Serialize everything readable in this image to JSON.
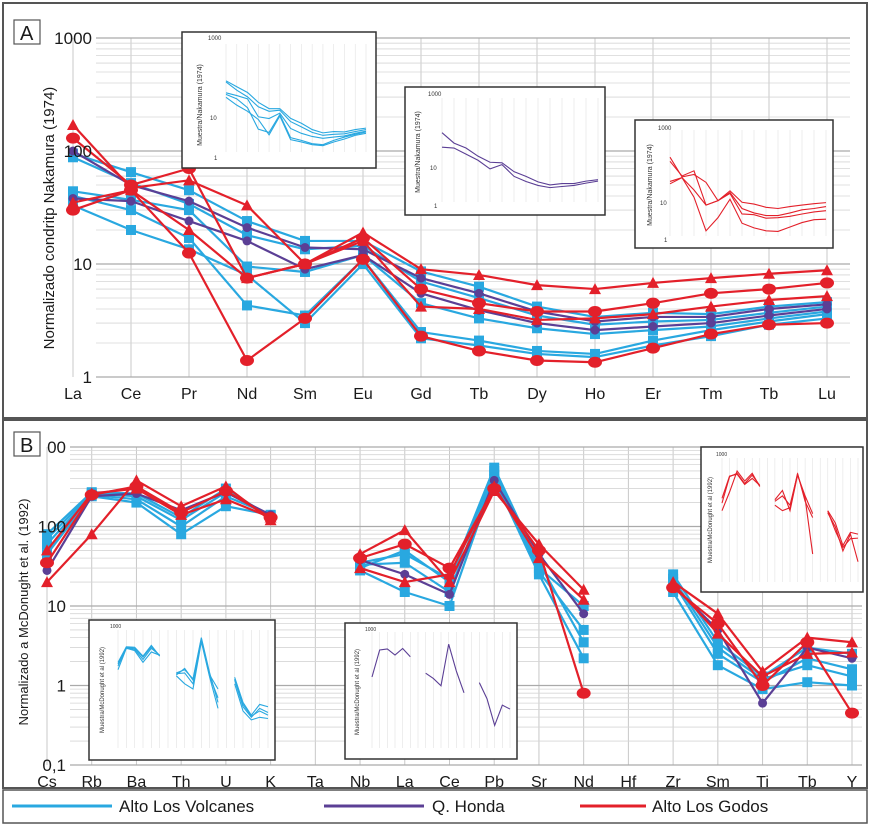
{
  "colors": {
    "alto_los_volcanes": "#29a8e0",
    "q_honda": "#5b3f95",
    "alto_los_godos": "#e3202a",
    "grid": "#c8c8c8",
    "frame": "#555555"
  },
  "legend": [
    {
      "key": "alto_los_volcanes",
      "label": "Alto Los Volcanes"
    },
    {
      "key": "q_honda",
      "label": "Q. Honda"
    },
    {
      "key": "alto_los_godos",
      "label": "Alto Los Godos"
    }
  ],
  "panel_a": {
    "letter": "A",
    "ylabel": "Normalizado condritp Nakamura (1974)",
    "yticks": [
      "1",
      "10",
      "100",
      "1000"
    ]
  },
  "panel_b": {
    "letter": "B",
    "ylabel": "Normalizado a McDonught et al. (1992)",
    "yticks": [
      "0,1",
      "1",
      "10",
      "100",
      "00"
    ]
  },
  "inset_a1": {
    "ylabel": "Muestra/Nakamura (1974)",
    "ytick_top": "1000",
    "ytick_low": "10",
    "ytick_bottom": "1"
  },
  "inset_a2": {
    "ylabel": "Muestra/Nakamura (1974)",
    "ytick_top": "1000",
    "ytick_low": "10",
    "ytick_bottom": "1"
  },
  "inset_a3": {
    "ylabel": "Muestra/Nakamura (1974)",
    "ytick_top": "1000",
    "ytick_low": "10",
    "ytick_bottom": "1"
  },
  "inset_b1": {
    "ylabel": "Muestra/McDonught et al (1992)",
    "ytick_top": "1000"
  },
  "inset_b2": {
    "ylabel": "Muestra/McDonught et al (1992)",
    "ytick_top": "1000"
  },
  "inset_b3": {
    "ylabel": "Muestra/McDonught et al (1992)",
    "ytick_top": "1000"
  },
  "chart_data": [
    {
      "type": "line",
      "panel": "A",
      "ylabel": "Normalizado condritp Nakamura (1974)",
      "yscale": "log",
      "ylim": [
        1,
        1000
      ],
      "categories": [
        "La",
        "Ce",
        "Pr",
        "Nd",
        "Sm",
        "Eu",
        "Gd",
        "Tb",
        "Dy",
        "Ho",
        "Er",
        "Tm",
        "Tb",
        "Lu"
      ],
      "series": [
        {
          "name": "Alto Los Volcanes",
          "values": [
            95,
            65,
            45,
            24,
            16,
            16,
            8.6,
            6.3,
            4.2,
            3.4,
            3.7,
            3.6,
            4.2,
            4.6
          ]
        },
        {
          "name": "Alto Los Volcanes",
          "values": [
            88,
            52,
            34,
            18,
            13.5,
            14.5,
            7,
            5,
            3.5,
            2.9,
            3.1,
            3.2,
            3.7,
            4.2
          ]
        },
        {
          "name": "Alto Los Volcanes",
          "values": [
            44,
            37,
            30,
            9.5,
            8.5,
            12,
            4.5,
            3.3,
            2.7,
            2.4,
            2.6,
            2.8,
            3.3,
            3.8
          ]
        },
        {
          "name": "Alto Los Volcanes",
          "values": [
            33,
            20,
            13.5,
            8,
            3,
            10,
            2.2,
            1.9,
            1.6,
            1.5,
            1.9,
            2.3,
            2.9,
            3.3
          ]
        },
        {
          "name": "Alto Los Volcanes",
          "values": [
            40,
            30,
            17,
            4.3,
            3.5,
            11,
            2.5,
            2.1,
            1.7,
            1.6,
            2.1,
            2.6,
            3.1,
            3.6
          ]
        },
        {
          "name": "Q. Honda",
          "values": [
            100,
            50,
            36,
            21,
            14,
            13.5,
            7.5,
            5.5,
            3.8,
            3.1,
            3.4,
            3.4,
            4.0,
            4.4
          ]
        },
        {
          "name": "Q. Honda",
          "values": [
            38,
            36,
            24,
            16,
            9,
            12,
            5.5,
            3.9,
            3.0,
            2.6,
            2.8,
            3.0,
            3.5,
            4.0
          ]
        },
        {
          "name": "Alto Los Godos",
          "values": [
            170,
            47,
            55,
            33,
            10,
            19,
            9,
            8,
            6.5,
            6,
            6.8,
            7.5,
            8.2,
            8.8
          ]
        },
        {
          "name": "Alto Los Godos",
          "values": [
            130,
            50,
            70,
            7.5,
            10,
            17,
            6,
            4.5,
            3.8,
            3.8,
            4.5,
            5.5,
            6.0,
            6.8
          ]
        },
        {
          "name": "Alto Los Godos",
          "values": [
            35,
            45,
            20,
            7.5,
            10,
            16,
            4.2,
            4.0,
            3.2,
            3.3,
            3.6,
            4.2,
            4.8,
            5.2
          ]
        },
        {
          "name": "Alto Los Godos",
          "values": [
            30,
            45,
            12.5,
            1.4,
            3.3,
            11,
            2.3,
            1.7,
            1.4,
            1.35,
            1.8,
            2.4,
            2.9,
            3.0
          ]
        }
      ]
    },
    {
      "type": "line",
      "panel": "B",
      "ylabel": "Normalizado a McDonught et al. (1992)",
      "yscale": "log",
      "ylim": [
        0.1,
        1000
      ],
      "categories": [
        "Cs",
        "Rb",
        "Ba",
        "Th",
        "U",
        "K",
        "Ta",
        "Nb",
        "La",
        "Ce",
        "Pb",
        "Sr",
        "Nd",
        "Hf",
        "Zr",
        "Sm",
        "Ti",
        "Tb",
        "Y"
      ],
      "series": [
        {
          "name": "Alto Los Volcanes",
          "values": [
            80,
            270,
            260,
            130,
            300,
            130,
            null,
            30,
            50,
            20,
            500,
            30,
            10,
            null,
            25,
            3.5,
            1.3,
            3,
            2.5
          ]
        },
        {
          "name": "Alto Los Volcanes",
          "values": [
            60,
            250,
            220,
            100,
            240,
            140,
            null,
            33,
            35,
            15,
            450,
            27,
            5,
            null,
            20,
            2.5,
            1.1,
            2.2,
            1.6
          ]
        },
        {
          "name": "Alto Los Volcanes",
          "values": [
            45,
            240,
            200,
            80,
            180,
            140,
            null,
            28,
            15,
            10,
            400,
            25,
            2.2,
            null,
            15,
            1.8,
            0.9,
            1.1,
            1.0
          ]
        },
        {
          "name": "Alto Los Volcanes",
          "values": [
            70,
            260,
            240,
            120,
            270,
            135,
            null,
            35,
            45,
            22,
            550,
            35,
            3.5,
            null,
            22,
            3,
            1.2,
            1.8,
            1.3
          ]
        },
        {
          "name": "Q. Honda",
          "values": [
            28,
            240,
            260,
            160,
            270,
            140,
            null,
            38,
            25,
            14,
            380,
            45,
            8,
            null,
            18,
            5,
            0.6,
            3,
            2.2
          ]
        },
        {
          "name": "Alto Los Godos",
          "values": [
            20,
            80,
            380,
            180,
            320,
            120,
            null,
            45,
            90,
            20,
            280,
            60,
            16,
            null,
            20,
            8,
            1.5,
            4,
            3.5
          ]
        },
        {
          "name": "Alto Los Godos",
          "values": [
            35,
            250,
            320,
            150,
            280,
            130,
            null,
            40,
            60,
            30,
            300,
            50,
            0.8,
            null,
            17,
            6,
            1.0,
            3.5,
            0.45
          ]
        },
        {
          "name": "Alto Los Godos",
          "values": [
            50,
            260,
            300,
            140,
            220,
            130,
            null,
            30,
            20,
            25,
            320,
            40,
            12,
            null,
            19,
            4.5,
            1.3,
            2.5,
            2.6
          ]
        }
      ]
    }
  ]
}
